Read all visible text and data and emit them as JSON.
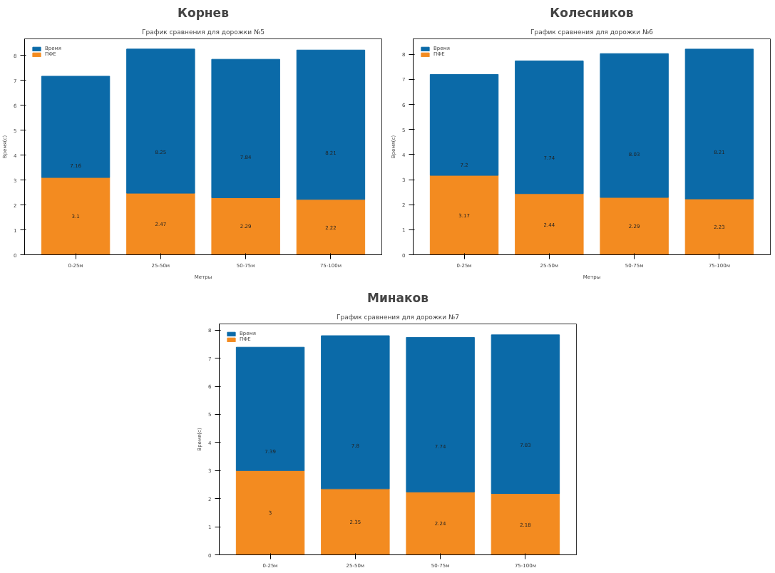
{
  "chart_data": [
    {
      "type": "bar",
      "title": "Корнев",
      "subtitle": "График сравнения для дорожки №5",
      "xlabel": "Метры",
      "ylabel": "Время(с)",
      "categories": [
        "0-25м",
        "25-50м",
        "50-75м",
        "75-100м"
      ],
      "stacked": true,
      "legend": "top left",
      "grid": false,
      "ylim": [
        0,
        8.66
      ],
      "yticks": [
        0,
        1,
        2,
        3,
        4,
        5,
        6,
        7,
        8
      ],
      "totals": [
        "7.16",
        "8.25",
        "7.84",
        "8.21"
      ],
      "series": [
        {
          "name": "ПФЕ",
          "color": "#f38b20",
          "values": [
            3.1,
            2.47,
            2.29,
            2.22
          ],
          "value_labels": [
            "3.1",
            "2.47",
            "2.29",
            "2.22"
          ]
        },
        {
          "name": "Время",
          "color": "#0b6aa8",
          "values": [
            4.06,
            5.78,
            5.55,
            5.99
          ]
        }
      ]
    },
    {
      "type": "bar",
      "title": "Колесников",
      "subtitle": "График сравнения для дорожки №6",
      "xlabel": "Метры",
      "ylabel": "Время(с)",
      "categories": [
        "0-25м",
        "25-50м",
        "50-75м",
        "75-100м"
      ],
      "stacked": true,
      "legend": "top left",
      "grid": false,
      "ylim": [
        0,
        8.62
      ],
      "yticks": [
        0,
        1,
        2,
        3,
        4,
        5,
        6,
        7,
        8
      ],
      "totals": [
        "7.2",
        "7.74",
        "8.03",
        "8.21"
      ],
      "series": [
        {
          "name": "ПФЕ",
          "color": "#f38b20",
          "values": [
            3.17,
            2.44,
            2.29,
            2.23
          ],
          "value_labels": [
            "3.17",
            "2.44",
            "2.29",
            "2.23"
          ]
        },
        {
          "name": "Время",
          "color": "#0b6aa8",
          "values": [
            4.03,
            5.3,
            5.74,
            5.98
          ]
        }
      ]
    },
    {
      "type": "bar",
      "title": "Минаков",
      "subtitle": "График сравнения для дорожки №7",
      "ylabel": "Время(с)",
      "categories": [
        "0-25м",
        "25-50м",
        "50-75м",
        "75-100м"
      ],
      "stacked": true,
      "legend": "top left",
      "grid": false,
      "ylim": [
        0,
        8.22
      ],
      "yticks": [
        0,
        1,
        2,
        3,
        4,
        5,
        6,
        7,
        8
      ],
      "totals": [
        "7.39",
        "7.8",
        "7.74",
        "7.83"
      ],
      "series": [
        {
          "name": "ПФЕ",
          "color": "#f38b20",
          "values": [
            3,
            2.35,
            2.24,
            2.18
          ],
          "value_labels": [
            "3",
            "2.35",
            "2.24",
            "2.18"
          ]
        },
        {
          "name": "Время",
          "color": "#0b6aa8",
          "values": [
            4.39,
            5.45,
            5.5,
            5.65
          ]
        }
      ]
    }
  ]
}
